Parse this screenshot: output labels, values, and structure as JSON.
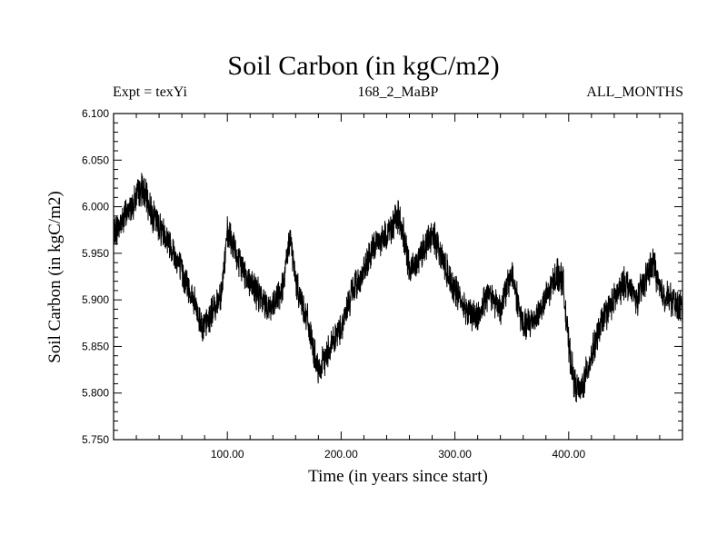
{
  "chart_data": {
    "type": "line",
    "title": "Soil Carbon (in kgC/m2)",
    "subtitle_left": "Expt = texYi",
    "subtitle_center": "168_2_MaBP",
    "subtitle_right": "ALL_MONTHS",
    "xlabel": "Time (in years since start)",
    "ylabel": "Soil Carbon (in kgC/m2)",
    "xlim": [
      0,
      500
    ],
    "ylim": [
      5.75,
      6.1
    ],
    "xticks": [
      100,
      200,
      300,
      400
    ],
    "xtick_labels": [
      "100.00",
      "200.00",
      "300.00",
      "400.00"
    ],
    "yticks": [
      5.75,
      5.8,
      5.85,
      5.9,
      5.95,
      6.0,
      6.05,
      6.1
    ],
    "ytick_labels": [
      "5.750",
      "5.800",
      "5.850",
      "5.900",
      "5.950",
      "6.000",
      "6.050",
      "6.100"
    ],
    "grid": false,
    "line_color": "#000000",
    "series": [
      {
        "x": [
          0,
          10,
          20,
          25,
          35,
          50,
          60,
          70,
          75,
          80,
          88,
          95,
          100,
          105,
          110,
          120,
          130,
          140,
          150,
          155,
          160,
          170,
          175,
          180,
          190,
          200,
          210,
          220,
          230,
          240,
          250,
          255,
          260,
          270,
          280,
          285,
          290,
          300,
          310,
          320,
          330,
          340,
          350,
          355,
          360,
          370,
          380,
          390,
          395,
          400,
          405,
          410,
          420,
          430,
          440,
          450,
          460,
          470,
          475,
          480,
          490,
          500
        ],
        "y": [
          5.97,
          5.99,
          6.01,
          6.02,
          5.99,
          5.96,
          5.93,
          5.9,
          5.88,
          5.87,
          5.89,
          5.91,
          5.97,
          5.96,
          5.94,
          5.92,
          5.9,
          5.89,
          5.92,
          5.97,
          5.92,
          5.88,
          5.85,
          5.82,
          5.85,
          5.87,
          5.91,
          5.93,
          5.96,
          5.97,
          5.99,
          5.97,
          5.93,
          5.95,
          5.97,
          5.96,
          5.94,
          5.91,
          5.89,
          5.88,
          5.91,
          5.89,
          5.93,
          5.9,
          5.87,
          5.88,
          5.9,
          5.93,
          5.92,
          5.85,
          5.81,
          5.8,
          5.84,
          5.88,
          5.9,
          5.92,
          5.9,
          5.93,
          5.94,
          5.91,
          5.9,
          5.89
        ]
      }
    ]
  }
}
